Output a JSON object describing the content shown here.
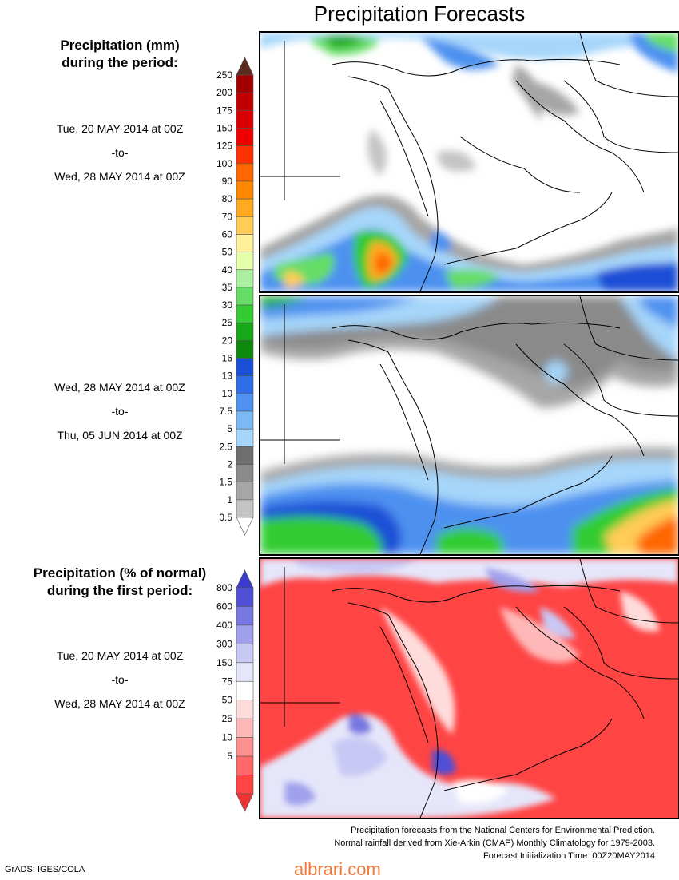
{
  "title": "Precipitation Forecasts",
  "sections": {
    "mm": {
      "heading_line1": "Precipitation (mm)",
      "heading_line2": "during the period:"
    },
    "pct": {
      "heading_line1": "Precipitation (% of normal)",
      "heading_line2": "during the first period:"
    }
  },
  "periods": {
    "first": {
      "start": "Tue, 20 MAY 2014 at 00Z",
      "sep": "-to-",
      "end": "Wed, 28 MAY 2014 at 00Z"
    },
    "second": {
      "start": "Wed, 28 MAY 2014 at 00Z",
      "sep": "-to-",
      "end": "Thu, 05 JUN 2014 at 00Z"
    },
    "third": {
      "start": "Tue, 20 MAY 2014 at 00Z",
      "sep": "-to-",
      "end": "Wed, 28 MAY 2014 at 00Z"
    }
  },
  "chart_data": [
    {
      "type": "heatmap",
      "title": "Precipitation (mm)",
      "legend_levels": [
        "250",
        "200",
        "175",
        "150",
        "125",
        "100",
        "90",
        "80",
        "70",
        "60",
        "50",
        "40",
        "35",
        "30",
        "25",
        "20",
        "16",
        "13",
        "10",
        "7.5",
        "5",
        "2.5",
        "2",
        "1.5",
        "1",
        "0.5"
      ],
      "legend_colors": [
        "#a00000",
        "#c00000",
        "#d80000",
        "#ee0000",
        "#ff3300",
        "#ff6600",
        "#ff8800",
        "#ffaa22",
        "#ffcc55",
        "#fff099",
        "#e6ffaa",
        "#aaf0a0",
        "#66dd66",
        "#33cc33",
        "#16a816",
        "#0b8a0b",
        "#1a4fd6",
        "#2e6ee8",
        "#4e91f0",
        "#7ab8f6",
        "#a6d6fa",
        "#6e6e6e",
        "#8a8a8a",
        "#a6a6a6",
        "#c4c4c4"
      ],
      "legend_top_color": "#5a2a1e"
    },
    {
      "type": "heatmap",
      "title": "Precipitation (% of normal)",
      "legend_levels": [
        "800",
        "600",
        "400",
        "300",
        "150",
        "75",
        "50",
        "25",
        "10",
        "5"
      ],
      "legend_colors": [
        "#5050d6",
        "#7878e2",
        "#a0a0ec",
        "#c8c8f4",
        "#e6e6fb",
        "#ffffff",
        "#ffdcdc",
        "#ffb8b8",
        "#ff9090",
        "#ff6868",
        "#ff4444"
      ],
      "legend_top_color": "#3a3acc"
    }
  ],
  "footer": {
    "line1": "Precipitation forecasts from the National Centers for Environmental Prediction.",
    "line2": "Normal rainfall derived from Xie-Arkin (CMAP) Monthly Climatology for 1979-2003.",
    "line3": "Forecast Initialization Time: 00Z20MAY2014"
  },
  "credit": "GrADS: IGES/COLA",
  "watermark": "albrari.com"
}
